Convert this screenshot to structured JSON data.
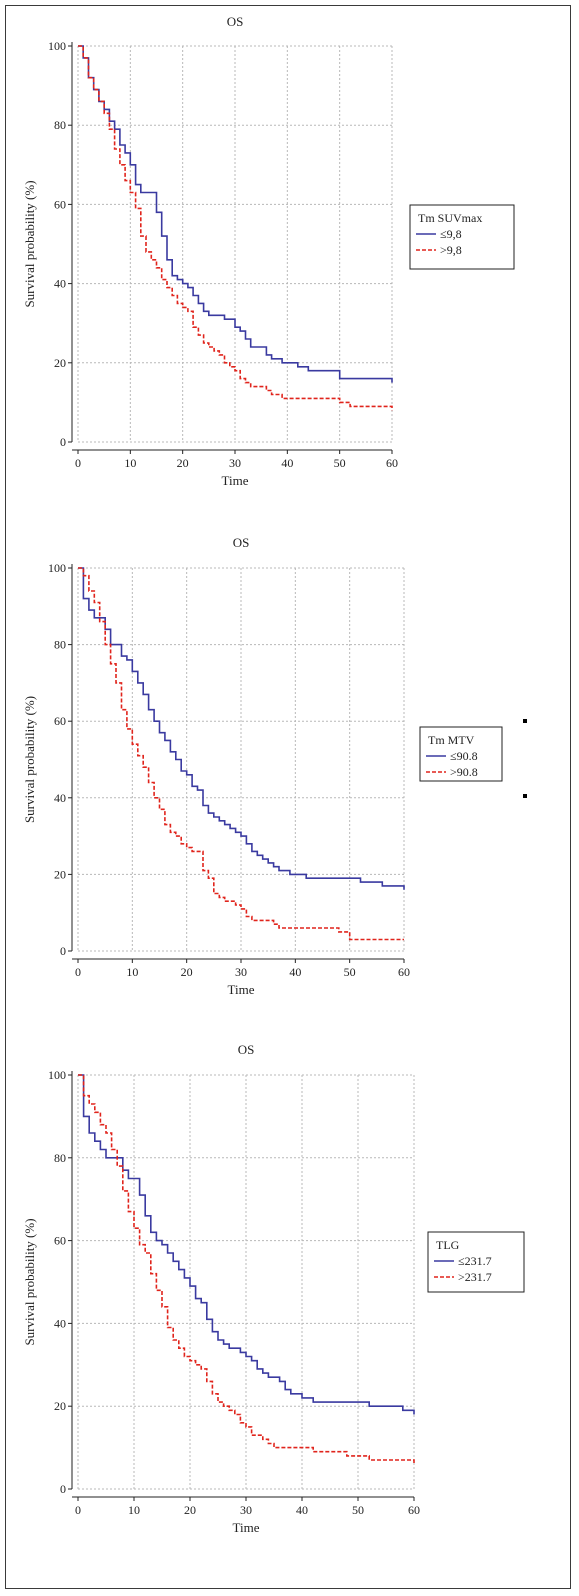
{
  "colors": {
    "series_a": "#3a3aa0",
    "series_b": "#e0241c",
    "grid": "#b8b8b8",
    "axis": "#222222"
  },
  "chart_data": [
    {
      "type": "line",
      "title": "OS",
      "xlabel": "Time",
      "ylabel": "Survival probability (%)",
      "xlim": [
        0,
        60
      ],
      "ylim": [
        0,
        100
      ],
      "xticks": [
        0,
        10,
        20,
        30,
        40,
        50,
        60
      ],
      "yticks": [
        0,
        20,
        40,
        60,
        80,
        100
      ],
      "grid": true,
      "legend_position": "right",
      "legend_title": "Tm SUVmax",
      "series": [
        {
          "name": "≤9,8",
          "style": "solid",
          "x": [
            0,
            1,
            2,
            3,
            4,
            5,
            6,
            7,
            8,
            9,
            10,
            11,
            12,
            13,
            14,
            15,
            16,
            17,
            18,
            19,
            20,
            21,
            22,
            23,
            24,
            25,
            26,
            27,
            28,
            29,
            30,
            31,
            32,
            33,
            34,
            35,
            36,
            37,
            38,
            39,
            40,
            42,
            44,
            46,
            48,
            50,
            52,
            54,
            56,
            58,
            60
          ],
          "y": [
            100,
            97,
            92,
            89,
            86,
            84,
            81,
            79,
            75,
            73,
            70,
            65,
            63,
            63,
            63,
            58,
            52,
            46,
            42,
            41,
            40,
            39,
            37,
            35,
            33,
            32,
            32,
            32,
            31,
            31,
            29,
            28,
            26,
            24,
            24,
            24,
            22,
            21,
            21,
            20,
            20,
            19,
            18,
            18,
            18,
            16,
            16,
            16,
            16,
            16,
            15
          ]
        },
        {
          "name": ">9,8",
          "style": "dashed",
          "x": [
            0,
            1,
            2,
            3,
            4,
            5,
            6,
            7,
            8,
            9,
            10,
            11,
            12,
            13,
            14,
            15,
            16,
            17,
            18,
            19,
            20,
            21,
            22,
            23,
            24,
            25,
            26,
            27,
            28,
            29,
            30,
            31,
            32,
            33,
            34,
            35,
            36,
            37,
            38,
            39,
            40,
            42,
            44,
            46,
            48,
            50,
            52,
            54,
            56,
            58,
            60
          ],
          "y": [
            100,
            97,
            92,
            89,
            86,
            83,
            79,
            74,
            70,
            66,
            63,
            59,
            52,
            48,
            46,
            44,
            41,
            39,
            37,
            35,
            34,
            33,
            29,
            27,
            25,
            24,
            23,
            22,
            20,
            19,
            18,
            16,
            15,
            14,
            14,
            14,
            13,
            12,
            12,
            11,
            11,
            11,
            11,
            11,
            11,
            10,
            9,
            9,
            9,
            9,
            8
          ]
        }
      ]
    },
    {
      "type": "line",
      "title": "OS",
      "xlabel": "Time",
      "ylabel": "Survival probability (%)",
      "xlim": [
        0,
        60
      ],
      "ylim": [
        0,
        100
      ],
      "xticks": [
        0,
        10,
        20,
        30,
        40,
        50,
        60
      ],
      "yticks": [
        0,
        20,
        40,
        60,
        80,
        100
      ],
      "grid": true,
      "legend_position": "right",
      "legend_title": "Tm MTV",
      "series": [
        {
          "name": "≤90.8",
          "style": "solid",
          "x": [
            0,
            1,
            2,
            3,
            4,
            5,
            6,
            7,
            8,
            9,
            10,
            11,
            12,
            13,
            14,
            15,
            16,
            17,
            18,
            19,
            20,
            21,
            22,
            23,
            24,
            25,
            26,
            27,
            28,
            29,
            30,
            31,
            32,
            33,
            34,
            35,
            36,
            37,
            38,
            39,
            40,
            42,
            44,
            46,
            48,
            50,
            52,
            54,
            56,
            58,
            60
          ],
          "y": [
            100,
            92,
            89,
            87,
            87,
            84,
            80,
            80,
            77,
            76,
            73,
            70,
            67,
            63,
            60,
            57,
            55,
            52,
            50,
            47,
            46,
            43,
            42,
            38,
            36,
            35,
            34,
            33,
            32,
            31,
            30,
            28,
            26,
            25,
            24,
            23,
            22,
            21,
            21,
            20,
            20,
            19,
            19,
            19,
            19,
            19,
            18,
            18,
            17,
            17,
            16
          ]
        },
        {
          "name": ">90.8",
          "style": "dashed",
          "x": [
            0,
            1,
            2,
            3,
            4,
            5,
            6,
            7,
            8,
            9,
            10,
            11,
            12,
            13,
            14,
            15,
            16,
            17,
            18,
            19,
            20,
            21,
            22,
            23,
            24,
            25,
            26,
            27,
            28,
            29,
            30,
            31,
            32,
            33,
            34,
            35,
            36,
            37,
            38,
            39,
            40,
            42,
            44,
            46,
            48,
            50,
            52,
            54,
            56,
            58,
            60
          ],
          "y": [
            100,
            98,
            94,
            91,
            86,
            80,
            75,
            70,
            63,
            58,
            54,
            51,
            48,
            44,
            40,
            37,
            33,
            31,
            30,
            28,
            27,
            26,
            26,
            21,
            19,
            15,
            14,
            13,
            13,
            12,
            11,
            9,
            8,
            8,
            8,
            8,
            7,
            6,
            6,
            6,
            6,
            6,
            6,
            6,
            5,
            3,
            3,
            3,
            3,
            3,
            3
          ]
        }
      ]
    },
    {
      "type": "line",
      "title": "OS",
      "xlabel": "Time",
      "ylabel": "Survival probability (%)",
      "xlim": [
        0,
        60
      ],
      "ylim": [
        0,
        100
      ],
      "xticks": [
        0,
        10,
        20,
        30,
        40,
        50,
        60
      ],
      "yticks": [
        0,
        20,
        40,
        60,
        80,
        100
      ],
      "grid": true,
      "legend_position": "right",
      "legend_title": "TLG",
      "series": [
        {
          "name": "≤231.7",
          "style": "solid",
          "x": [
            0,
            1,
            2,
            3,
            4,
            5,
            6,
            7,
            8,
            9,
            10,
            11,
            12,
            13,
            14,
            15,
            16,
            17,
            18,
            19,
            20,
            21,
            22,
            23,
            24,
            25,
            26,
            27,
            28,
            29,
            30,
            31,
            32,
            33,
            34,
            35,
            36,
            37,
            38,
            39,
            40,
            42,
            44,
            46,
            48,
            50,
            52,
            54,
            56,
            58,
            60
          ],
          "y": [
            100,
            90,
            86,
            84,
            82,
            80,
            80,
            80,
            77,
            75,
            75,
            71,
            66,
            62,
            60,
            59,
            57,
            55,
            53,
            51,
            49,
            46,
            45,
            41,
            38,
            36,
            35,
            34,
            34,
            33,
            32,
            31,
            29,
            28,
            27,
            27,
            26,
            24,
            23,
            23,
            22,
            21,
            21,
            21,
            21,
            21,
            20,
            20,
            20,
            19,
            18
          ]
        },
        {
          "name": ">231.7",
          "style": "dashed",
          "x": [
            0,
            1,
            2,
            3,
            4,
            5,
            6,
            7,
            8,
            9,
            10,
            11,
            12,
            13,
            14,
            15,
            16,
            17,
            18,
            19,
            20,
            21,
            22,
            23,
            24,
            25,
            26,
            27,
            28,
            29,
            30,
            31,
            32,
            33,
            34,
            35,
            36,
            37,
            38,
            39,
            40,
            42,
            44,
            46,
            48,
            50,
            52,
            54,
            56,
            58,
            60
          ],
          "y": [
            100,
            95,
            93,
            91,
            88,
            86,
            82,
            78,
            72,
            67,
            63,
            59,
            57,
            52,
            48,
            44,
            39,
            36,
            34,
            32,
            31,
            30,
            29,
            26,
            23,
            21,
            20,
            19,
            18,
            16,
            15,
            13,
            13,
            12,
            11,
            10,
            10,
            10,
            10,
            10,
            10,
            9,
            9,
            9,
            8,
            8,
            7,
            7,
            7,
            7,
            6
          ]
        }
      ]
    }
  ]
}
